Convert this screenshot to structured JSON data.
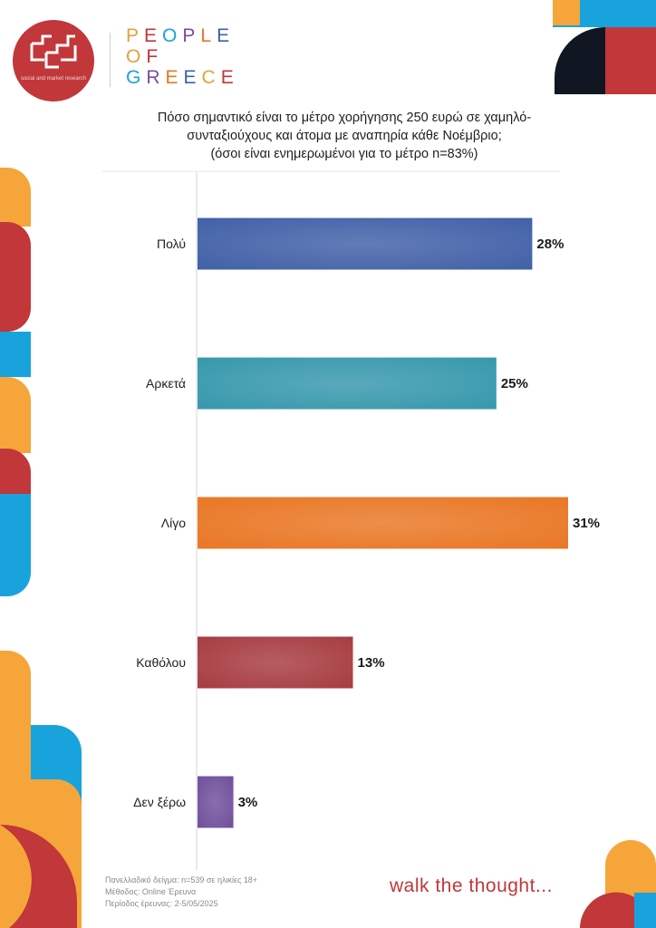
{
  "header": {
    "logo_caption": "social and market research",
    "brand_lines": [
      "PEOPLE",
      "OF",
      "GREECE"
    ]
  },
  "chart_data": {
    "type": "bar",
    "orientation": "horizontal",
    "title_lines": [
      "Πόσο σημαντικό είναι το μέτρο χορήγησης 250 ευρώ σε χαμηλό-",
      "συνταξιούχους και άτομα με αναπηρία κάθε Νοέμβριο;",
      "(όσοι είναι ενημερωμένοι για το μέτρο n=83%)"
    ],
    "categories": [
      "Πολύ",
      "Αρκετά",
      "Λίγο",
      "Καθόλου",
      "Δεν ξέρω"
    ],
    "values": [
      28,
      25,
      31,
      13,
      3
    ],
    "value_labels": [
      "28%",
      "25%",
      "31%",
      "13%",
      "3%"
    ],
    "colors": [
      "#3f5fa6",
      "#3497ab",
      "#e97522",
      "#a63a3f",
      "#6e4e9a"
    ],
    "xlim": [
      0,
      31
    ],
    "grid": false,
    "legend": "none"
  },
  "footer": {
    "notes": [
      "Πανελλαδικό δείγμα: n=539 σε ηλικίες 18+",
      "Μέθοδος: Online Έρευνα",
      "Περίοδος έρευνας: 2-5/05/2025"
    ],
    "tagline": "walk the thought..."
  }
}
